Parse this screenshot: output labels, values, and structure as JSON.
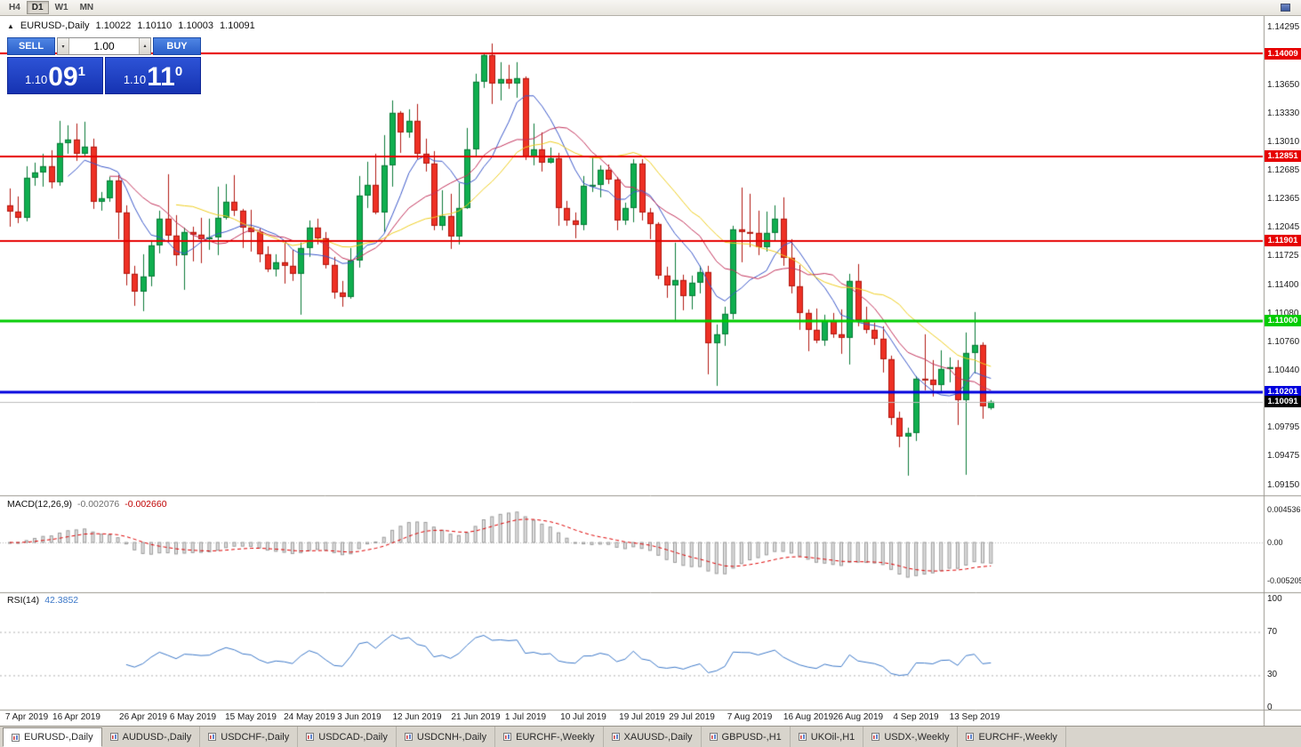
{
  "toolbar": {
    "timeframes": [
      {
        "label": "H4",
        "active": false
      },
      {
        "label": "D1",
        "active": true
      },
      {
        "label": "W1",
        "active": false
      },
      {
        "label": "MN",
        "active": false
      }
    ]
  },
  "chart_header": {
    "marker": "▲",
    "symbol": "EURUSD-,Daily",
    "open": "1.10022",
    "high": "1.10110",
    "low": "1.10003",
    "close": "1.10091"
  },
  "trade_panel": {
    "sell_label": "SELL",
    "buy_label": "BUY",
    "volume": "1.00",
    "volume_down_icon": "▾",
    "volume_up_icon": "▴",
    "sell_price": {
      "prefix": "1.10",
      "pips": "09",
      "pipette": "1"
    },
    "buy_price": {
      "prefix": "1.10",
      "pips": "11",
      "pipette": "0"
    }
  },
  "price_axis": {
    "ticks": [
      "1.14295",
      "1.13970",
      "1.13650",
      "1.13330",
      "1.13010",
      "1.12685",
      "1.12365",
      "1.12045",
      "1.11725",
      "1.11400",
      "1.11080",
      "1.10760",
      "1.10440",
      "1.10120",
      "1.09795",
      "1.09475",
      "1.09150"
    ]
  },
  "hlines": [
    {
      "price": 1.14009,
      "label": "1.14009",
      "color": "#e60000",
      "width": 2
    },
    {
      "price": 1.12851,
      "label": "1.12851",
      "color": "#e60000",
      "width": 2
    },
    {
      "price": 1.11901,
      "label": "1.11901",
      "color": "#e60000",
      "width": 2
    },
    {
      "price": 1.11,
      "label": "1.11000",
      "color": "#00cc00",
      "width": 3
    },
    {
      "price": 1.10201,
      "label": "1.10201",
      "color": "#0000dd",
      "width": 3
    }
  ],
  "current_price": {
    "value": 1.10091,
    "label": "1.10091",
    "box_color": "#000000"
  },
  "chart_data": {
    "type": "candlestick",
    "symbol": "EURUSD",
    "timeframe": "Daily",
    "colors": {
      "up": "#0fae4f",
      "up_border": "#0a7a37",
      "down": "#ee3024",
      "down_border": "#b01810"
    },
    "candles": [
      [
        1.123,
        1.1249,
        1.1206,
        1.1223
      ],
      [
        1.1223,
        1.124,
        1.121,
        1.1216
      ],
      [
        1.1216,
        1.1274,
        1.1212,
        1.1261
      ],
      [
        1.1261,
        1.1278,
        1.1252,
        1.1267
      ],
      [
        1.1267,
        1.1288,
        1.1251,
        1.1274
      ],
      [
        1.1274,
        1.1292,
        1.1249,
        1.1256
      ],
      [
        1.1256,
        1.1325,
        1.1252,
        1.13
      ],
      [
        1.13,
        1.132,
        1.1288,
        1.1304
      ],
      [
        1.1304,
        1.1322,
        1.128,
        1.1288
      ],
      [
        1.1288,
        1.1324,
        1.1285,
        1.1296
      ],
      [
        1.1296,
        1.1305,
        1.1226,
        1.1234
      ],
      [
        1.1234,
        1.1245,
        1.1224,
        1.1238
      ],
      [
        1.1238,
        1.1262,
        1.1234,
        1.1258
      ],
      [
        1.1258,
        1.1264,
        1.1192,
        1.1222
      ],
      [
        1.1222,
        1.123,
        1.114,
        1.1153
      ],
      [
        1.1153,
        1.1162,
        1.1117,
        1.1133
      ],
      [
        1.1133,
        1.1175,
        1.1111,
        1.115
      ],
      [
        1.115,
        1.1191,
        1.1139,
        1.1185
      ],
      [
        1.1185,
        1.1224,
        1.1176,
        1.1215
      ],
      [
        1.1215,
        1.1265,
        1.1188,
        1.1196
      ],
      [
        1.1196,
        1.1219,
        1.1162,
        1.1174
      ],
      [
        1.1174,
        1.1205,
        1.1135,
        1.12
      ],
      [
        1.12,
        1.1206,
        1.1167,
        1.1197
      ],
      [
        1.1197,
        1.1216,
        1.1165,
        1.1192
      ],
      [
        1.1192,
        1.1215,
        1.118,
        1.1194
      ],
      [
        1.1194,
        1.1251,
        1.1174,
        1.1216
      ],
      [
        1.1216,
        1.1254,
        1.1214,
        1.1234
      ],
      [
        1.1234,
        1.1264,
        1.1218,
        1.1224
      ],
      [
        1.1224,
        1.1226,
        1.1182,
        1.1205
      ],
      [
        1.1205,
        1.1225,
        1.1178,
        1.12
      ],
      [
        1.12,
        1.1204,
        1.1166,
        1.1175
      ],
      [
        1.1175,
        1.1184,
        1.1155,
        1.1158
      ],
      [
        1.1158,
        1.1175,
        1.115,
        1.1166
      ],
      [
        1.1166,
        1.1188,
        1.1142,
        1.1162
      ],
      [
        1.1162,
        1.118,
        1.1145,
        1.1153
      ],
      [
        1.1153,
        1.1188,
        1.1107,
        1.1182
      ],
      [
        1.1182,
        1.1213,
        1.1172,
        1.1205
      ],
      [
        1.1205,
        1.1215,
        1.1186,
        1.1193
      ],
      [
        1.1193,
        1.12,
        1.1159,
        1.1163
      ],
      [
        1.1163,
        1.1172,
        1.1125,
        1.1132
      ],
      [
        1.1132,
        1.1145,
        1.1116,
        1.1127
      ],
      [
        1.1127,
        1.1182,
        1.1125,
        1.1168
      ],
      [
        1.1168,
        1.1263,
        1.116,
        1.1241
      ],
      [
        1.1241,
        1.1279,
        1.1227,
        1.1253
      ],
      [
        1.1253,
        1.1288,
        1.122,
        1.1222
      ],
      [
        1.1222,
        1.1309,
        1.12,
        1.1275
      ],
      [
        1.1275,
        1.1348,
        1.1251,
        1.1334
      ],
      [
        1.1334,
        1.1336,
        1.1289,
        1.1312
      ],
      [
        1.1312,
        1.1338,
        1.1306,
        1.1325
      ],
      [
        1.1325,
        1.1344,
        1.1282,
        1.1288
      ],
      [
        1.1288,
        1.1305,
        1.1268,
        1.1277
      ],
      [
        1.1277,
        1.1291,
        1.1202,
        1.1207
      ],
      [
        1.1207,
        1.1247,
        1.1202,
        1.1218
      ],
      [
        1.1218,
        1.1243,
        1.1181,
        1.1195
      ],
      [
        1.1195,
        1.1255,
        1.1186,
        1.1227
      ],
      [
        1.1227,
        1.1317,
        1.1226,
        1.1293
      ],
      [
        1.1293,
        1.1378,
        1.1285,
        1.1369
      ],
      [
        1.1369,
        1.14,
        1.1362,
        1.1399
      ],
      [
        1.1399,
        1.1412,
        1.1344,
        1.1367
      ],
      [
        1.1367,
        1.1391,
        1.1348,
        1.1372
      ],
      [
        1.1372,
        1.1388,
        1.1361,
        1.1367
      ],
      [
        1.1367,
        1.1391,
        1.1351,
        1.1373
      ],
      [
        1.1373,
        1.1375,
        1.1281,
        1.1285
      ],
      [
        1.1285,
        1.1322,
        1.1275,
        1.1293
      ],
      [
        1.1293,
        1.1312,
        1.1268,
        1.1278
      ],
      [
        1.1278,
        1.1295,
        1.1277,
        1.1283
      ],
      [
        1.1283,
        1.1289,
        1.1207,
        1.1227
      ],
      [
        1.1227,
        1.1235,
        1.1207,
        1.1213
      ],
      [
        1.1213,
        1.1222,
        1.1193,
        1.1208
      ],
      [
        1.1208,
        1.1263,
        1.1202,
        1.1252
      ],
      [
        1.1252,
        1.1285,
        1.1245,
        1.1253
      ],
      [
        1.1253,
        1.1275,
        1.1239,
        1.127
      ],
      [
        1.127,
        1.1276,
        1.1254,
        1.1259
      ],
      [
        1.1259,
        1.1262,
        1.1202,
        1.1213
      ],
      [
        1.1213,
        1.1233,
        1.1208,
        1.1227
      ],
      [
        1.1227,
        1.1282,
        1.1211,
        1.1277
      ],
      [
        1.1277,
        1.1282,
        1.1213,
        1.1222
      ],
      [
        1.1222,
        1.1227,
        1.1192,
        1.1209
      ],
      [
        1.1209,
        1.1211,
        1.1147,
        1.1151
      ],
      [
        1.1151,
        1.1161,
        1.1126,
        1.114
      ],
      [
        1.114,
        1.1188,
        1.1101,
        1.1146
      ],
      [
        1.1146,
        1.1152,
        1.1112,
        1.1128
      ],
      [
        1.1128,
        1.1151,
        1.1113,
        1.1143
      ],
      [
        1.1143,
        1.1162,
        1.1131,
        1.1155
      ],
      [
        1.1155,
        1.1162,
        1.104,
        1.1075
      ],
      [
        1.1075,
        1.1096,
        1.1027,
        1.1085
      ],
      [
        1.1085,
        1.1116,
        1.1072,
        1.1108
      ],
      [
        1.1108,
        1.1207,
        1.1102,
        1.1203
      ],
      [
        1.1203,
        1.125,
        1.1166,
        1.12
      ],
      [
        1.12,
        1.1243,
        1.1183,
        1.1199
      ],
      [
        1.1199,
        1.1224,
        1.1174,
        1.1183
      ],
      [
        1.1183,
        1.1223,
        1.1178,
        1.1199
      ],
      [
        1.1199,
        1.123,
        1.119,
        1.1215
      ],
      [
        1.1215,
        1.1239,
        1.1162,
        1.1171
      ],
      [
        1.1171,
        1.1192,
        1.1131,
        1.1139
      ],
      [
        1.1139,
        1.1163,
        1.109,
        1.1109
      ],
      [
        1.1109,
        1.1113,
        1.1066,
        1.109
      ],
      [
        1.109,
        1.1114,
        1.1075,
        1.1078
      ],
      [
        1.1078,
        1.1107,
        1.1072,
        1.11
      ],
      [
        1.11,
        1.1109,
        1.1081,
        1.1085
      ],
      [
        1.1085,
        1.1113,
        1.1063,
        1.1081
      ],
      [
        1.1081,
        1.1153,
        1.1051,
        1.1145
      ],
      [
        1.1145,
        1.1164,
        1.1094,
        1.1101
      ],
      [
        1.1101,
        1.1116,
        1.1086,
        1.109
      ],
      [
        1.109,
        1.1098,
        1.1073,
        1.108
      ],
      [
        1.108,
        1.1094,
        1.1042,
        1.1057
      ],
      [
        1.1057,
        1.1061,
        1.0983,
        1.0991
      ],
      [
        1.0991,
        1.0998,
        1.0958,
        1.097
      ],
      [
        1.097,
        1.098,
        1.0926,
        1.0974
      ],
      [
        1.0974,
        1.1038,
        1.0965,
        1.1035
      ],
      [
        1.1035,
        1.1085,
        1.1022,
        1.1034
      ],
      [
        1.1034,
        1.1056,
        1.1015,
        1.1028
      ],
      [
        1.1028,
        1.1067,
        1.1021,
        1.1046
      ],
      [
        1.1046,
        1.1059,
        1.1031,
        1.1048
      ],
      [
        1.1048,
        1.1056,
        1.0983,
        1.1011
      ],
      [
        1.1011,
        1.1087,
        1.0927,
        1.1064
      ],
      [
        1.1064,
        1.111,
        1.1041,
        1.1073
      ],
      [
        1.1073,
        1.1076,
        1.099,
        1.1004
      ],
      [
        1.10022,
        1.1011,
        1.10003,
        1.10091
      ]
    ],
    "x_labels": [
      {
        "label": "7 Apr 2019",
        "index": 2
      },
      {
        "label": "16 Apr 2019",
        "index": 8
      },
      {
        "label": "26 Apr 2019",
        "index": 16
      },
      {
        "label": "6 May 2019",
        "index": 22
      },
      {
        "label": "15 May 2019",
        "index": 29
      },
      {
        "label": "24 May 2019",
        "index": 36
      },
      {
        "label": "3 Jun 2019",
        "index": 42
      },
      {
        "label": "12 Jun 2019",
        "index": 49
      },
      {
        "label": "21 Jun 2019",
        "index": 56
      },
      {
        "label": "1 Jul 2019",
        "index": 62
      },
      {
        "label": "10 Jul 2019",
        "index": 69
      },
      {
        "label": "19 Jul 2019",
        "index": 76
      },
      {
        "label": "29 Jul 2019",
        "index": 82
      },
      {
        "label": "7 Aug 2019",
        "index": 89
      },
      {
        "label": "16 Aug 2019",
        "index": 96
      },
      {
        "label": "26 Aug 2019",
        "index": 102
      },
      {
        "label": "4 Sep 2019",
        "index": 109
      },
      {
        "label": "13 Sep 2019",
        "index": 116
      }
    ],
    "moving_averages": [
      {
        "period": 8,
        "color": "#3a57c9"
      },
      {
        "period": 13,
        "color": "#c23059"
      },
      {
        "period": 21,
        "color": "#eecd1e"
      }
    ],
    "indicators": {
      "macd": {
        "label": "MACD(12,26,9)",
        "fast": 12,
        "slow": 26,
        "signal": 9,
        "value_main": "-0.002076",
        "value_signal": "-0.002660",
        "histogram_color": "#e0e0e0",
        "histogram_border": "#9a9a9a",
        "signal_color": "#dd0000",
        "axis": [
          {
            "v": 0.004536,
            "label": "0.004536"
          },
          {
            "v": 0,
            "label": "0.00"
          },
          {
            "v": -0.005205,
            "label": "-0.005205"
          }
        ]
      },
      "rsi": {
        "label": "RSI(14)",
        "period": 14,
        "value": "42.3852",
        "line_color": "#3c78c8",
        "levels": [
          70,
          30
        ],
        "axis": [
          {
            "v": 100,
            "label": "100"
          },
          {
            "v": 70,
            "label": "70"
          },
          {
            "v": 30,
            "label": "30"
          },
          {
            "v": 0,
            "label": "0"
          }
        ]
      }
    }
  },
  "bottom_tabs": [
    {
      "label": "EURUSD-,Daily",
      "active": true
    },
    {
      "label": "AUDUSD-,Daily",
      "active": false
    },
    {
      "label": "USDCHF-,Daily",
      "active": false
    },
    {
      "label": "USDCAD-,Daily",
      "active": false
    },
    {
      "label": "USDCNH-,Daily",
      "active": false
    },
    {
      "label": "EURCHF-,Weekly",
      "active": false
    },
    {
      "label": "XAUUSD-,Daily",
      "active": false
    },
    {
      "label": "GBPUSD-,H1",
      "active": false
    },
    {
      "label": "UKOil-,H1",
      "active": false
    },
    {
      "label": "USDX-,Weekly",
      "active": false
    },
    {
      "label": "EURCHF-,Weekly",
      "active": false
    }
  ]
}
